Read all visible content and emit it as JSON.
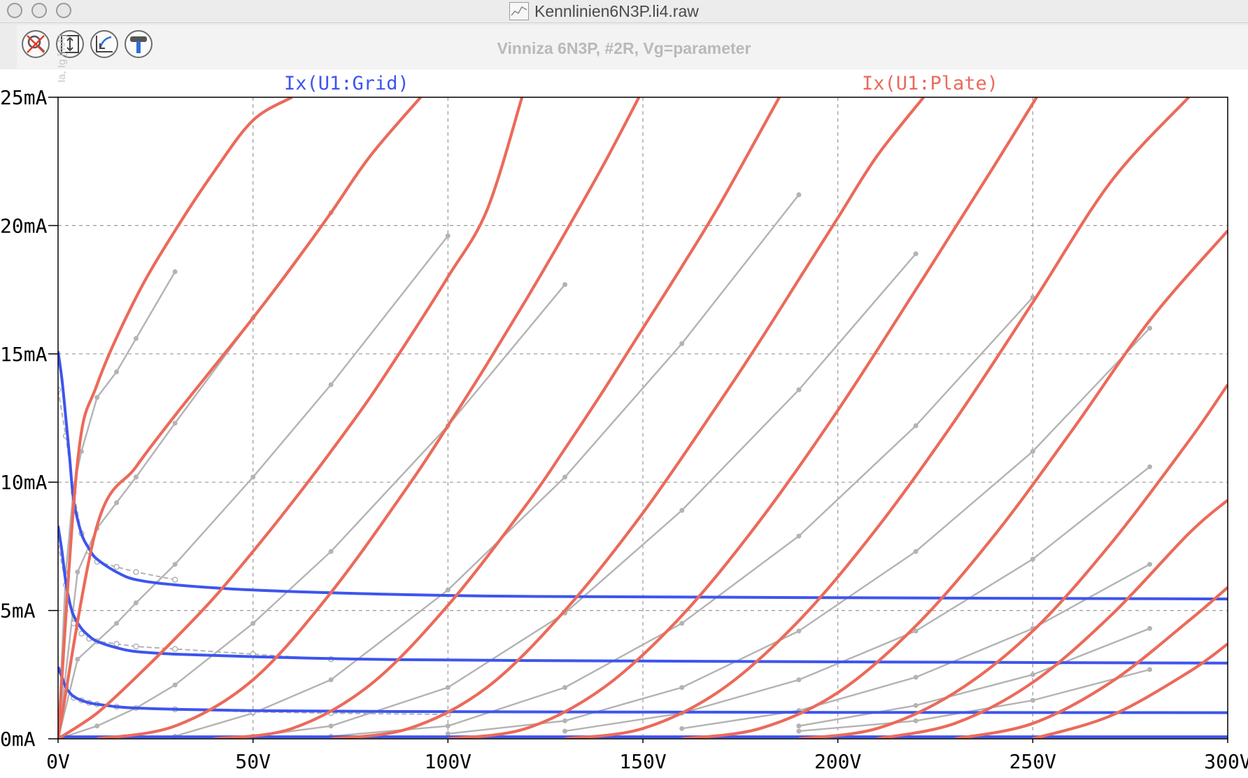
{
  "window": {
    "title": "Kennlinien6N3P.li4.raw",
    "plot_title": "Vinniza 6N3P, #2R, Vg=parameter",
    "y_axis_title": "Ia, Ig [mA]"
  },
  "toolbar": {
    "buttons": [
      {
        "icon": "zoom-cancel-icon"
      },
      {
        "icon": "autorange-y-icon"
      },
      {
        "icon": "zoom-back-icon"
      },
      {
        "icon": "probe-hammer-icon"
      }
    ]
  },
  "colors": {
    "grid_trace": "#3d55ee",
    "plate_trace": "#eb6a5a",
    "measured": "#b3b3b3",
    "measured_dark": "#9e2a20"
  },
  "chart_data": {
    "type": "line",
    "title": "Vinniza 6N3P, #2R, Vg=parameter",
    "xlabel": "",
    "ylabel": "Ia, Ig [mA]",
    "xlim": [
      0,
      300
    ],
    "ylim": [
      0,
      25
    ],
    "x_unit": "V",
    "grid": true,
    "x_ticks": [
      "0V",
      "50V",
      "100V",
      "150V",
      "200V",
      "250V",
      "300V"
    ],
    "y_ticks": [
      "0mA",
      "5mA",
      "10mA",
      "15mA",
      "20mA",
      "25mA"
    ],
    "legend": [
      {
        "name": "Ix(U1:Grid)",
        "color": "#3d55ee",
        "placement": "top-left"
      },
      {
        "name": "Ix(U1:Plate)",
        "color": "#eb6a5a",
        "placement": "top-right"
      }
    ],
    "plate_series": [
      {
        "x": [
          0,
          5,
          10,
          20,
          30,
          40,
          50,
          60
        ],
        "y": [
          0,
          10.8,
          13.8,
          17.2,
          19.8,
          22.1,
          24.1,
          25.0
        ]
      },
      {
        "x": [
          0,
          10,
          20,
          30,
          40,
          50,
          60,
          70,
          80,
          93
        ],
        "y": [
          0,
          8.3,
          10.6,
          12.6,
          14.5,
          16.4,
          18.4,
          20.5,
          22.7,
          25.0
        ]
      },
      {
        "x": [
          0,
          10,
          20,
          30,
          40,
          50,
          60,
          70,
          80,
          90,
          100,
          110,
          119
        ],
        "y": [
          0,
          1.0,
          2.4,
          3.9,
          5.5,
          7.3,
          9.2,
          11.2,
          13.3,
          15.6,
          18.0,
          20.6,
          25.0
        ]
      },
      {
        "x": [
          10,
          30,
          50,
          70,
          90,
          100,
          110,
          120,
          130,
          140,
          149
        ],
        "y": [
          0,
          0.5,
          2.3,
          5.7,
          9.9,
          12.2,
          14.6,
          17.1,
          19.7,
          22.4,
          25.0
        ]
      },
      {
        "x": [
          40,
          60,
          80,
          100,
          120,
          130,
          140,
          150,
          160,
          170,
          185
        ],
        "y": [
          0,
          0.4,
          2.1,
          5.2,
          9.1,
          11.3,
          13.6,
          16.0,
          18.4,
          20.9,
          25.0
        ]
      },
      {
        "x": [
          70,
          90,
          110,
          130,
          150,
          170,
          180,
          190,
          200,
          210,
          222
        ],
        "y": [
          0,
          0.4,
          2.0,
          5.0,
          8.8,
          13.2,
          15.5,
          17.9,
          20.3,
          22.7,
          25.0
        ]
      },
      {
        "x": [
          100,
          120,
          140,
          160,
          180,
          200,
          220,
          230,
          240,
          251
        ],
        "y": [
          0,
          0.4,
          2.0,
          4.8,
          8.5,
          12.8,
          17.5,
          19.9,
          22.3,
          25.0
        ]
      },
      {
        "x": [
          130,
          150,
          170,
          190,
          210,
          230,
          250,
          270,
          290
        ],
        "y": [
          0,
          0.4,
          1.9,
          4.6,
          8.2,
          12.4,
          17.0,
          21.7,
          25.0
        ]
      },
      {
        "x": [
          160,
          180,
          200,
          220,
          240,
          260,
          280,
          300
        ],
        "y": [
          0,
          0.4,
          1.8,
          4.4,
          7.9,
          12.0,
          16.3,
          19.8
        ]
      },
      {
        "x": [
          190,
          210,
          230,
          250,
          270,
          290,
          300
        ],
        "y": [
          0,
          0.4,
          1.8,
          4.2,
          7.6,
          11.6,
          13.8
        ]
      },
      {
        "x": [
          210,
          230,
          250,
          270,
          290,
          300
        ],
        "y": [
          0,
          0.6,
          2.2,
          4.8,
          8.0,
          9.3
        ]
      },
      {
        "x": [
          230,
          250,
          270,
          290,
          300
        ],
        "y": [
          0,
          0.6,
          2.2,
          4.6,
          5.9
        ]
      },
      {
        "x": [
          250,
          270,
          290,
          300
        ],
        "y": [
          0,
          0.9,
          2.6,
          3.7
        ]
      }
    ],
    "grid_series": [
      {
        "x": [
          0,
          1,
          2,
          3,
          4,
          6,
          8,
          10,
          15,
          20,
          30,
          50,
          80,
          120,
          200,
          300
        ],
        "y": [
          15.1,
          14.0,
          12.5,
          10.9,
          9.3,
          8.0,
          7.4,
          7.0,
          6.5,
          6.2,
          6.0,
          5.8,
          5.65,
          5.55,
          5.5,
          5.45
        ]
      },
      {
        "x": [
          0,
          1,
          2,
          3,
          4,
          6,
          8,
          10,
          15,
          20,
          30,
          50,
          80,
          120,
          200,
          300
        ],
        "y": [
          8.3,
          7.3,
          6.1,
          5.3,
          4.8,
          4.3,
          4.0,
          3.8,
          3.55,
          3.4,
          3.3,
          3.2,
          3.1,
          3.05,
          3.0,
          2.95
        ]
      },
      {
        "x": [
          0,
          1,
          2,
          3,
          4,
          6,
          8,
          10,
          15,
          20,
          30,
          50,
          80,
          120,
          200,
          300
        ],
        "y": [
          2.8,
          2.4,
          2.0,
          1.8,
          1.65,
          1.5,
          1.4,
          1.35,
          1.25,
          1.2,
          1.15,
          1.1,
          1.07,
          1.05,
          1.03,
          1.02
        ]
      },
      {
        "x": [
          0,
          300
        ],
        "y": [
          0.08,
          0.08
        ]
      }
    ],
    "measured_plate": [
      {
        "x": [
          0,
          2,
          4,
          6,
          10,
          15,
          20,
          30
        ],
        "y": [
          0,
          6.5,
          9.8,
          11.2,
          13.3,
          14.3,
          15.6,
          18.2
        ]
      },
      {
        "x": [
          0,
          5,
          10,
          15,
          20,
          30,
          50,
          70
        ],
        "y": [
          0,
          6.5,
          8.2,
          9.2,
          10.2,
          12.3,
          16.4,
          20.5
        ]
      },
      {
        "x": [
          0,
          5,
          10,
          15,
          20,
          30,
          50,
          70,
          100
        ],
        "y": [
          0,
          3.1,
          3.8,
          4.5,
          5.3,
          6.8,
          10.2,
          13.8,
          19.6
        ]
      },
      {
        "x": [
          0,
          10,
          20,
          30,
          50,
          70,
          100,
          130
        ],
        "y": [
          0,
          0.5,
          1.2,
          2.1,
          4.5,
          7.3,
          12.2,
          17.7
        ]
      },
      {
        "x": [
          30,
          50,
          70,
          100,
          130,
          160,
          190
        ],
        "y": [
          0.1,
          1.0,
          2.3,
          5.8,
          10.2,
          15.4,
          21.2
        ]
      },
      {
        "x": [
          50,
          70,
          100,
          130,
          160,
          190,
          220
        ],
        "y": [
          0.1,
          0.5,
          2.0,
          4.9,
          8.9,
          13.6,
          18.9
        ]
      },
      {
        "x": [
          70,
          100,
          130,
          160,
          190,
          220,
          250
        ],
        "y": [
          0.1,
          0.5,
          2.0,
          4.5,
          7.9,
          12.2,
          17.2
        ]
      },
      {
        "x": [
          100,
          130,
          160,
          190,
          220,
          250,
          280
        ],
        "y": [
          0.2,
          0.7,
          2.0,
          4.2,
          7.3,
          11.2,
          16.0
        ]
      },
      {
        "x": [
          130,
          160,
          190,
          220,
          250,
          280
        ],
        "y": [
          0.3,
          1.0,
          2.3,
          4.2,
          7.0,
          10.6
        ]
      },
      {
        "x": [
          160,
          190,
          220,
          250,
          280
        ],
        "y": [
          0.4,
          1.1,
          2.4,
          4.3,
          6.8
        ]
      },
      {
        "x": [
          190,
          220,
          250,
          280
        ],
        "y": [
          0.5,
          1.3,
          2.5,
          4.3
        ]
      },
      {
        "x": [
          190,
          220,
          250,
          280
        ],
        "y": [
          0.3,
          0.7,
          1.5,
          2.7
        ]
      }
    ],
    "measured_grid": [
      {
        "x": [
          0,
          2,
          4,
          6,
          8,
          10,
          15,
          20,
          30
        ],
        "y": [
          13.6,
          11.8,
          9.6,
          8.0,
          7.3,
          6.9,
          6.7,
          6.5,
          6.2
        ]
      },
      {
        "x": [
          0,
          2,
          4,
          6,
          8,
          10,
          15,
          20,
          30,
          50,
          70
        ],
        "y": [
          7.6,
          6.0,
          4.5,
          4.1,
          3.9,
          3.8,
          3.7,
          3.6,
          3.5,
          3.3,
          3.1
        ]
      },
      {
        "x": [
          0,
          2,
          4,
          6,
          8,
          10,
          15,
          20,
          30,
          50,
          70,
          100
        ],
        "y": [
          2.7,
          2.0,
          1.6,
          1.5,
          1.4,
          1.35,
          1.25,
          1.2,
          1.15,
          1.05,
          1.0,
          0.95
        ]
      }
    ]
  }
}
